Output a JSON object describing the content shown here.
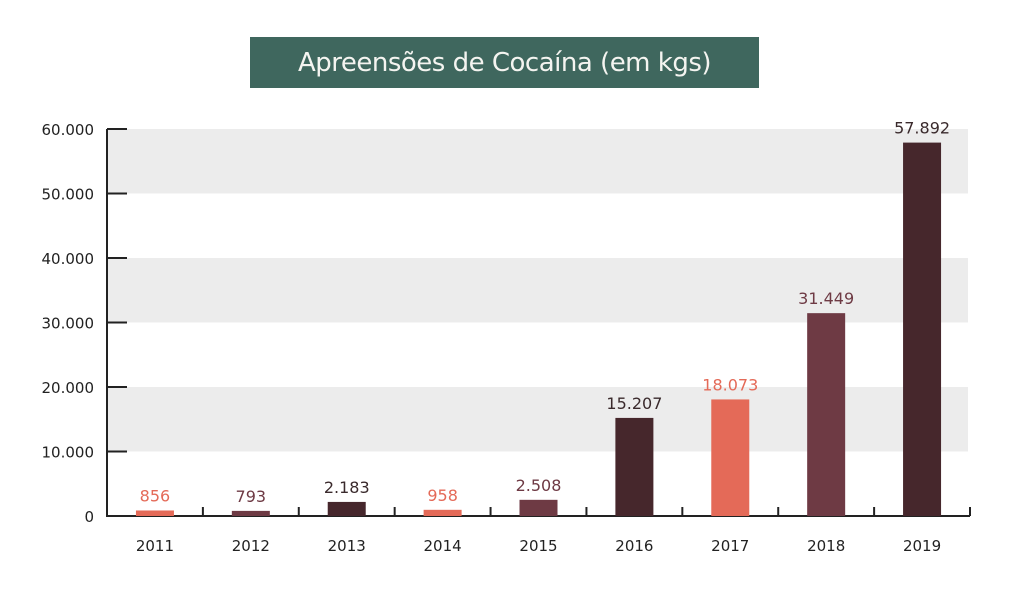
{
  "chart_data": {
    "type": "bar",
    "title": "Apreensões de Cocaína (em kgs)",
    "categories": [
      "2011",
      "2012",
      "2013",
      "2014",
      "2015",
      "2016",
      "2017",
      "2018",
      "2019"
    ],
    "values": [
      856,
      793,
      2183,
      958,
      2508,
      15207,
      18073,
      31449,
      57892
    ],
    "value_labels": [
      "856",
      "793",
      "2.183",
      "958",
      "2.508",
      "15.207",
      "18.073",
      "31.449",
      "57.892"
    ],
    "bar_colors": [
      "#e46a58",
      "#6e3a44",
      "#46272c",
      "#e46a58",
      "#6e3a44",
      "#46272c",
      "#e46a58",
      "#6e3a44",
      "#46272c"
    ],
    "label_colors": [
      "#e46a58",
      "#6e3a44",
      "#3a2a2c",
      "#e46a58",
      "#6e3a44",
      "#3a2a2c",
      "#e46a58",
      "#6e3a44",
      "#3a2a2c"
    ],
    "ylim": [
      0,
      60000
    ],
    "yticks": [
      0,
      10000,
      20000,
      30000,
      40000,
      50000,
      60000
    ],
    "ytick_labels": [
      "0",
      "10.000",
      "20.000",
      "30.000",
      "40.000",
      "50.000",
      "60.000"
    ],
    "xlabel": "",
    "ylabel": "",
    "grid": "alternating horizontal bands",
    "band_color": "#ececec",
    "title_bg": "#3f675e"
  }
}
